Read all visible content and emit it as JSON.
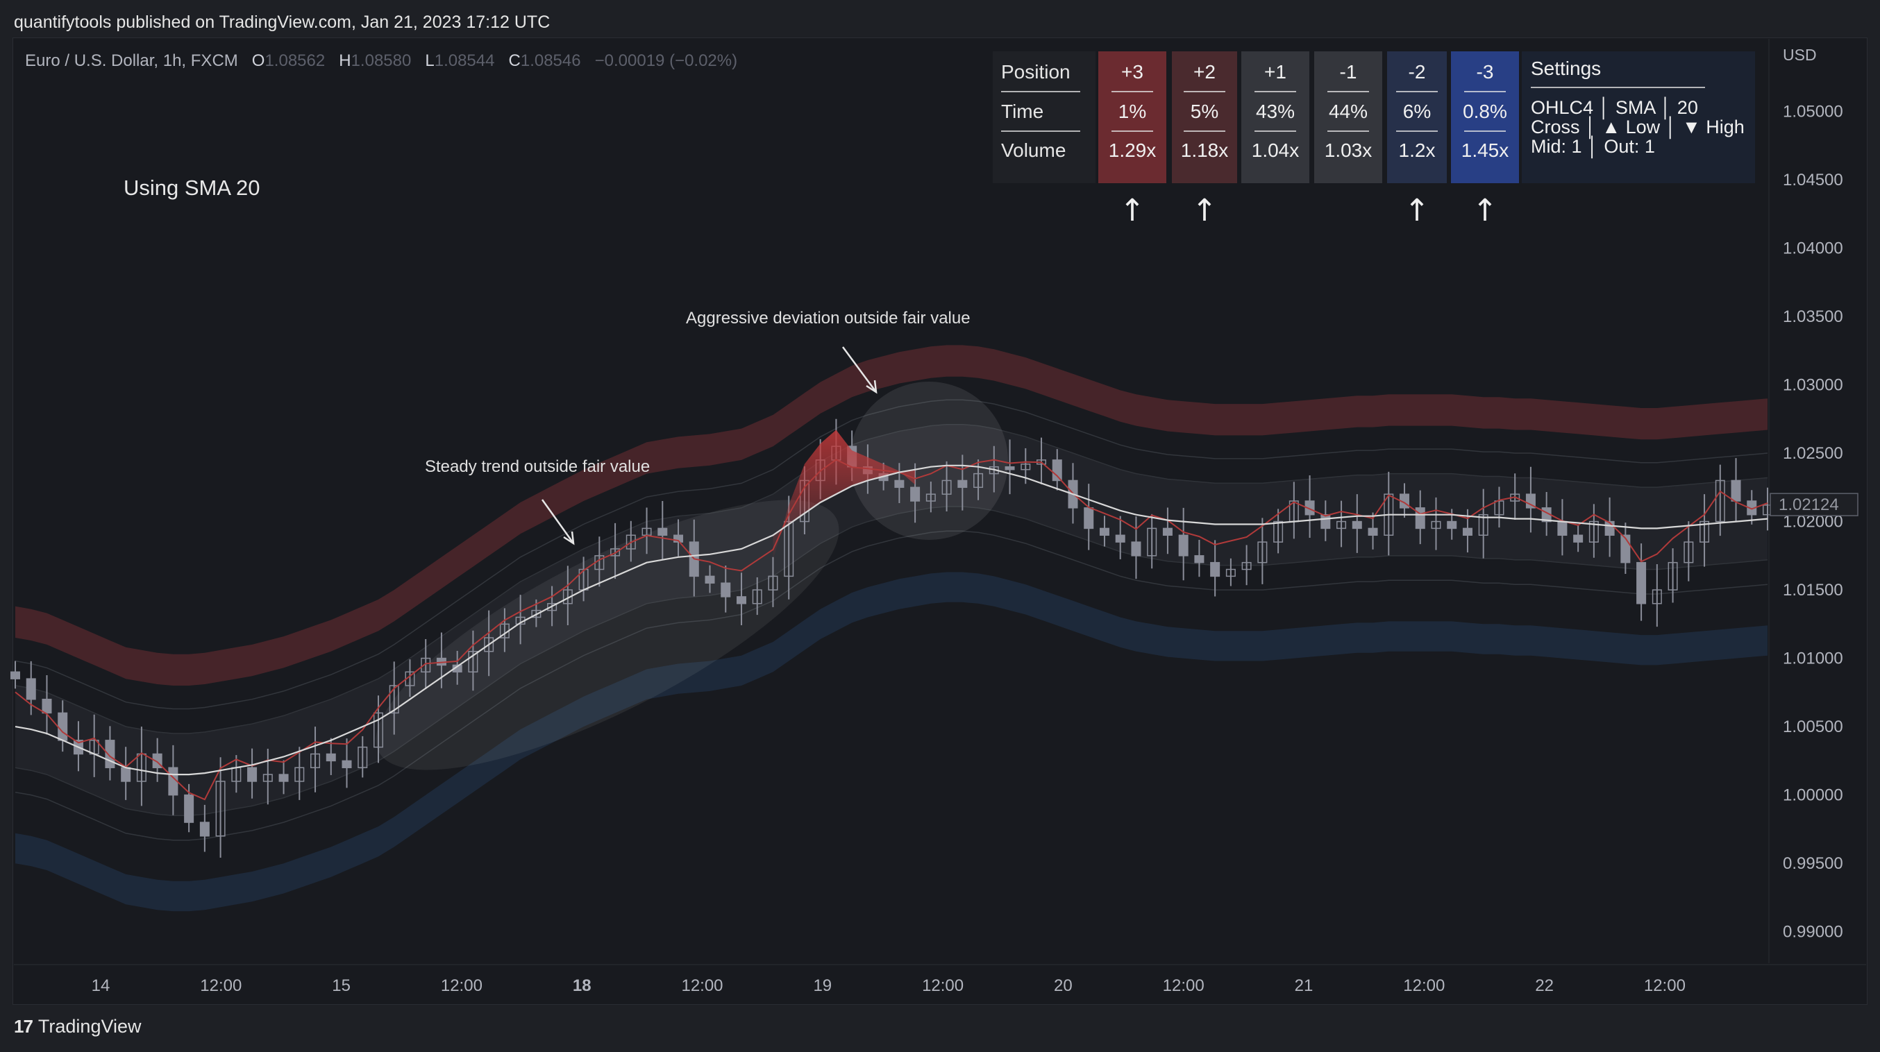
{
  "header": {
    "published": "quantifytools published on TradingView.com, Jan 21, 2023 17:12 UTC"
  },
  "symbol": {
    "name": "Euro / U.S. Dollar, 1h, FXCM",
    "o_label": "O",
    "o": "1.08562",
    "h_label": "H",
    "h": "1.08580",
    "l_label": "L",
    "l": "1.08544",
    "c_label": "C",
    "c": "1.08546",
    "change": "−0.00019 (−0.02%)"
  },
  "annotations": {
    "using": "Using SMA 20",
    "aggressive": "Aggressive deviation outside fair value",
    "steady": "Steady trend outside fair value"
  },
  "table": {
    "row_labels": [
      "Position",
      "Time",
      "Volume"
    ],
    "columns": [
      {
        "position": "+3",
        "time": "1%",
        "volume": "1.29x",
        "color": "#6b2b30"
      },
      {
        "position": "+2",
        "time": "5%",
        "volume": "1.18x",
        "color": "#4a2a2e"
      },
      {
        "position": "+1",
        "time": "43%",
        "volume": "1.04x",
        "color": "#34363c"
      },
      {
        "position": "-1",
        "time": "44%",
        "volume": "1.03x",
        "color": "#34363c"
      },
      {
        "position": "-2",
        "time": "6%",
        "volume": "1.2x",
        "color": "#26304a"
      },
      {
        "position": "-3",
        "time": "0.8%",
        "volume": "1.45x",
        "color": "#283f85"
      }
    ],
    "settings_title": "Settings",
    "settings_lines": [
      "OHLC4 │ SMA │ 20",
      "Cross │ ▲ Low │ ▼ High",
      "Mid: 1 │ Out: 1"
    ],
    "arrow_glyph": "↑"
  },
  "footer": {
    "brand": "TradingView",
    "logo_mark": "17"
  },
  "chart_data": {
    "type": "candlestick",
    "currency_label": "USD",
    "y_ticks": [
      "1.05000",
      "1.04500",
      "1.04000",
      "1.03500",
      "1.03000",
      "1.02500",
      "1.02000",
      "1.01500",
      "1.01000",
      "1.00500",
      "1.00000",
      "0.99500",
      "0.99000"
    ],
    "y_range": [
      0.9877,
      1.0553
    ],
    "current_price": "1.02124",
    "x_ticks": [
      {
        "label": "14",
        "bold": false
      },
      {
        "label": "12:00",
        "bold": false
      },
      {
        "label": "15",
        "bold": false
      },
      {
        "label": "12:00",
        "bold": false
      },
      {
        "label": "18",
        "bold": true
      },
      {
        "label": "12:00",
        "bold": false
      },
      {
        "label": "19",
        "bold": false
      },
      {
        "label": "12:00",
        "bold": false
      },
      {
        "label": "20",
        "bold": false
      },
      {
        "label": "12:00",
        "bold": false
      },
      {
        "label": "21",
        "bold": false
      },
      {
        "label": "12:00",
        "bold": false
      },
      {
        "label": "22",
        "bold": false
      },
      {
        "label": "12:00",
        "bold": false
      }
    ],
    "close_path": [
      1.0085,
      1.007,
      1.006,
      1.004,
      1.003,
      1.004,
      1.002,
      1.001,
      1.003,
      1.002,
      1.0,
      0.998,
      0.997,
      1.001,
      1.002,
      1.001,
      1.0015,
      1.001,
      1.002,
      1.003,
      1.0025,
      1.002,
      1.0035,
      1.006,
      1.008,
      1.009,
      1.01,
      1.0095,
      1.009,
      1.0105,
      1.0115,
      1.0125,
      1.013,
      1.0135,
      1.014,
      1.015,
      1.0165,
      1.0175,
      1.018,
      1.019,
      1.0195,
      1.019,
      1.0185,
      1.016,
      1.0155,
      1.0145,
      1.014,
      1.015,
      1.016,
      1.02,
      1.023,
      1.0245,
      1.0255,
      1.024,
      1.0235,
      1.023,
      1.0225,
      1.0215,
      1.022,
      1.023,
      1.0225,
      1.0235,
      1.024,
      1.0238,
      1.0242,
      1.0245,
      1.023,
      1.021,
      1.0195,
      1.019,
      1.0185,
      1.0175,
      1.0195,
      1.019,
      1.0175,
      1.017,
      1.016,
      1.0165,
      1.017,
      1.0185,
      1.02,
      1.0215,
      1.0205,
      1.0195,
      1.02,
      1.0195,
      1.019,
      1.022,
      1.021,
      1.0195,
      1.02,
      1.0195,
      1.019,
      1.0205,
      1.0215,
      1.022,
      1.021,
      1.02,
      1.019,
      1.0185,
      1.02,
      1.019,
      1.017,
      1.014,
      1.015,
      1.017,
      1.0185,
      1.02,
      1.023,
      1.0215,
      1.0205,
      1.0212
    ],
    "sma_path": [
      1.005,
      1.0048,
      1.0045,
      1.004,
      1.0035,
      1.003,
      1.0025,
      1.002,
      1.0018,
      1.0016,
      1.0015,
      1.0015,
      1.0016,
      1.0018,
      1.002,
      1.0022,
      1.0025,
      1.0028,
      1.0032,
      1.0036,
      1.004,
      1.0045,
      1.005,
      1.0055,
      1.0062,
      1.007,
      1.0078,
      1.0086,
      1.0094,
      1.0102,
      1.011,
      1.0118,
      1.0126,
      1.0132,
      1.0138,
      1.0144,
      1.015,
      1.0155,
      1.016,
      1.0165,
      1.017,
      1.0172,
      1.0174,
      1.0175,
      1.0176,
      1.0178,
      1.018,
      1.0185,
      1.019,
      1.0198,
      1.0206,
      1.0214,
      1.022,
      1.0226,
      1.023,
      1.0233,
      1.0236,
      1.0238,
      1.024,
      1.0241,
      1.0241,
      1.024,
      1.0238,
      1.0235,
      1.0232,
      1.0228,
      1.0224,
      1.022,
      1.0216,
      1.0212,
      1.0208,
      1.0205,
      1.0203,
      1.0201,
      1.02,
      1.0199,
      1.0198,
      1.0198,
      1.0198,
      1.0198,
      1.0199,
      1.02,
      1.0201,
      1.0202,
      1.0203,
      1.0204,
      1.0204,
      1.0205,
      1.0205,
      1.0205,
      1.0205,
      1.0205,
      1.0204,
      1.0203,
      1.0203,
      1.0202,
      1.0202,
      1.0201,
      1.02,
      1.0199,
      1.0198,
      1.0197,
      1.0196,
      1.0195,
      1.0195,
      1.0196,
      1.0197,
      1.0198,
      1.0199,
      1.02,
      1.0201,
      1.0202
    ],
    "upper_band_offset": [
      0.0065,
      0.0088
    ],
    "lower_band_offset": [
      0.0078,
      0.01
    ],
    "band_colors": {
      "upper": "#5a2a2e",
      "lower": "#1f2d40"
    },
    "candle_color": "#8a8d99",
    "sma_color": "#d8d8d8",
    "mid_color": "#b03a3a"
  }
}
